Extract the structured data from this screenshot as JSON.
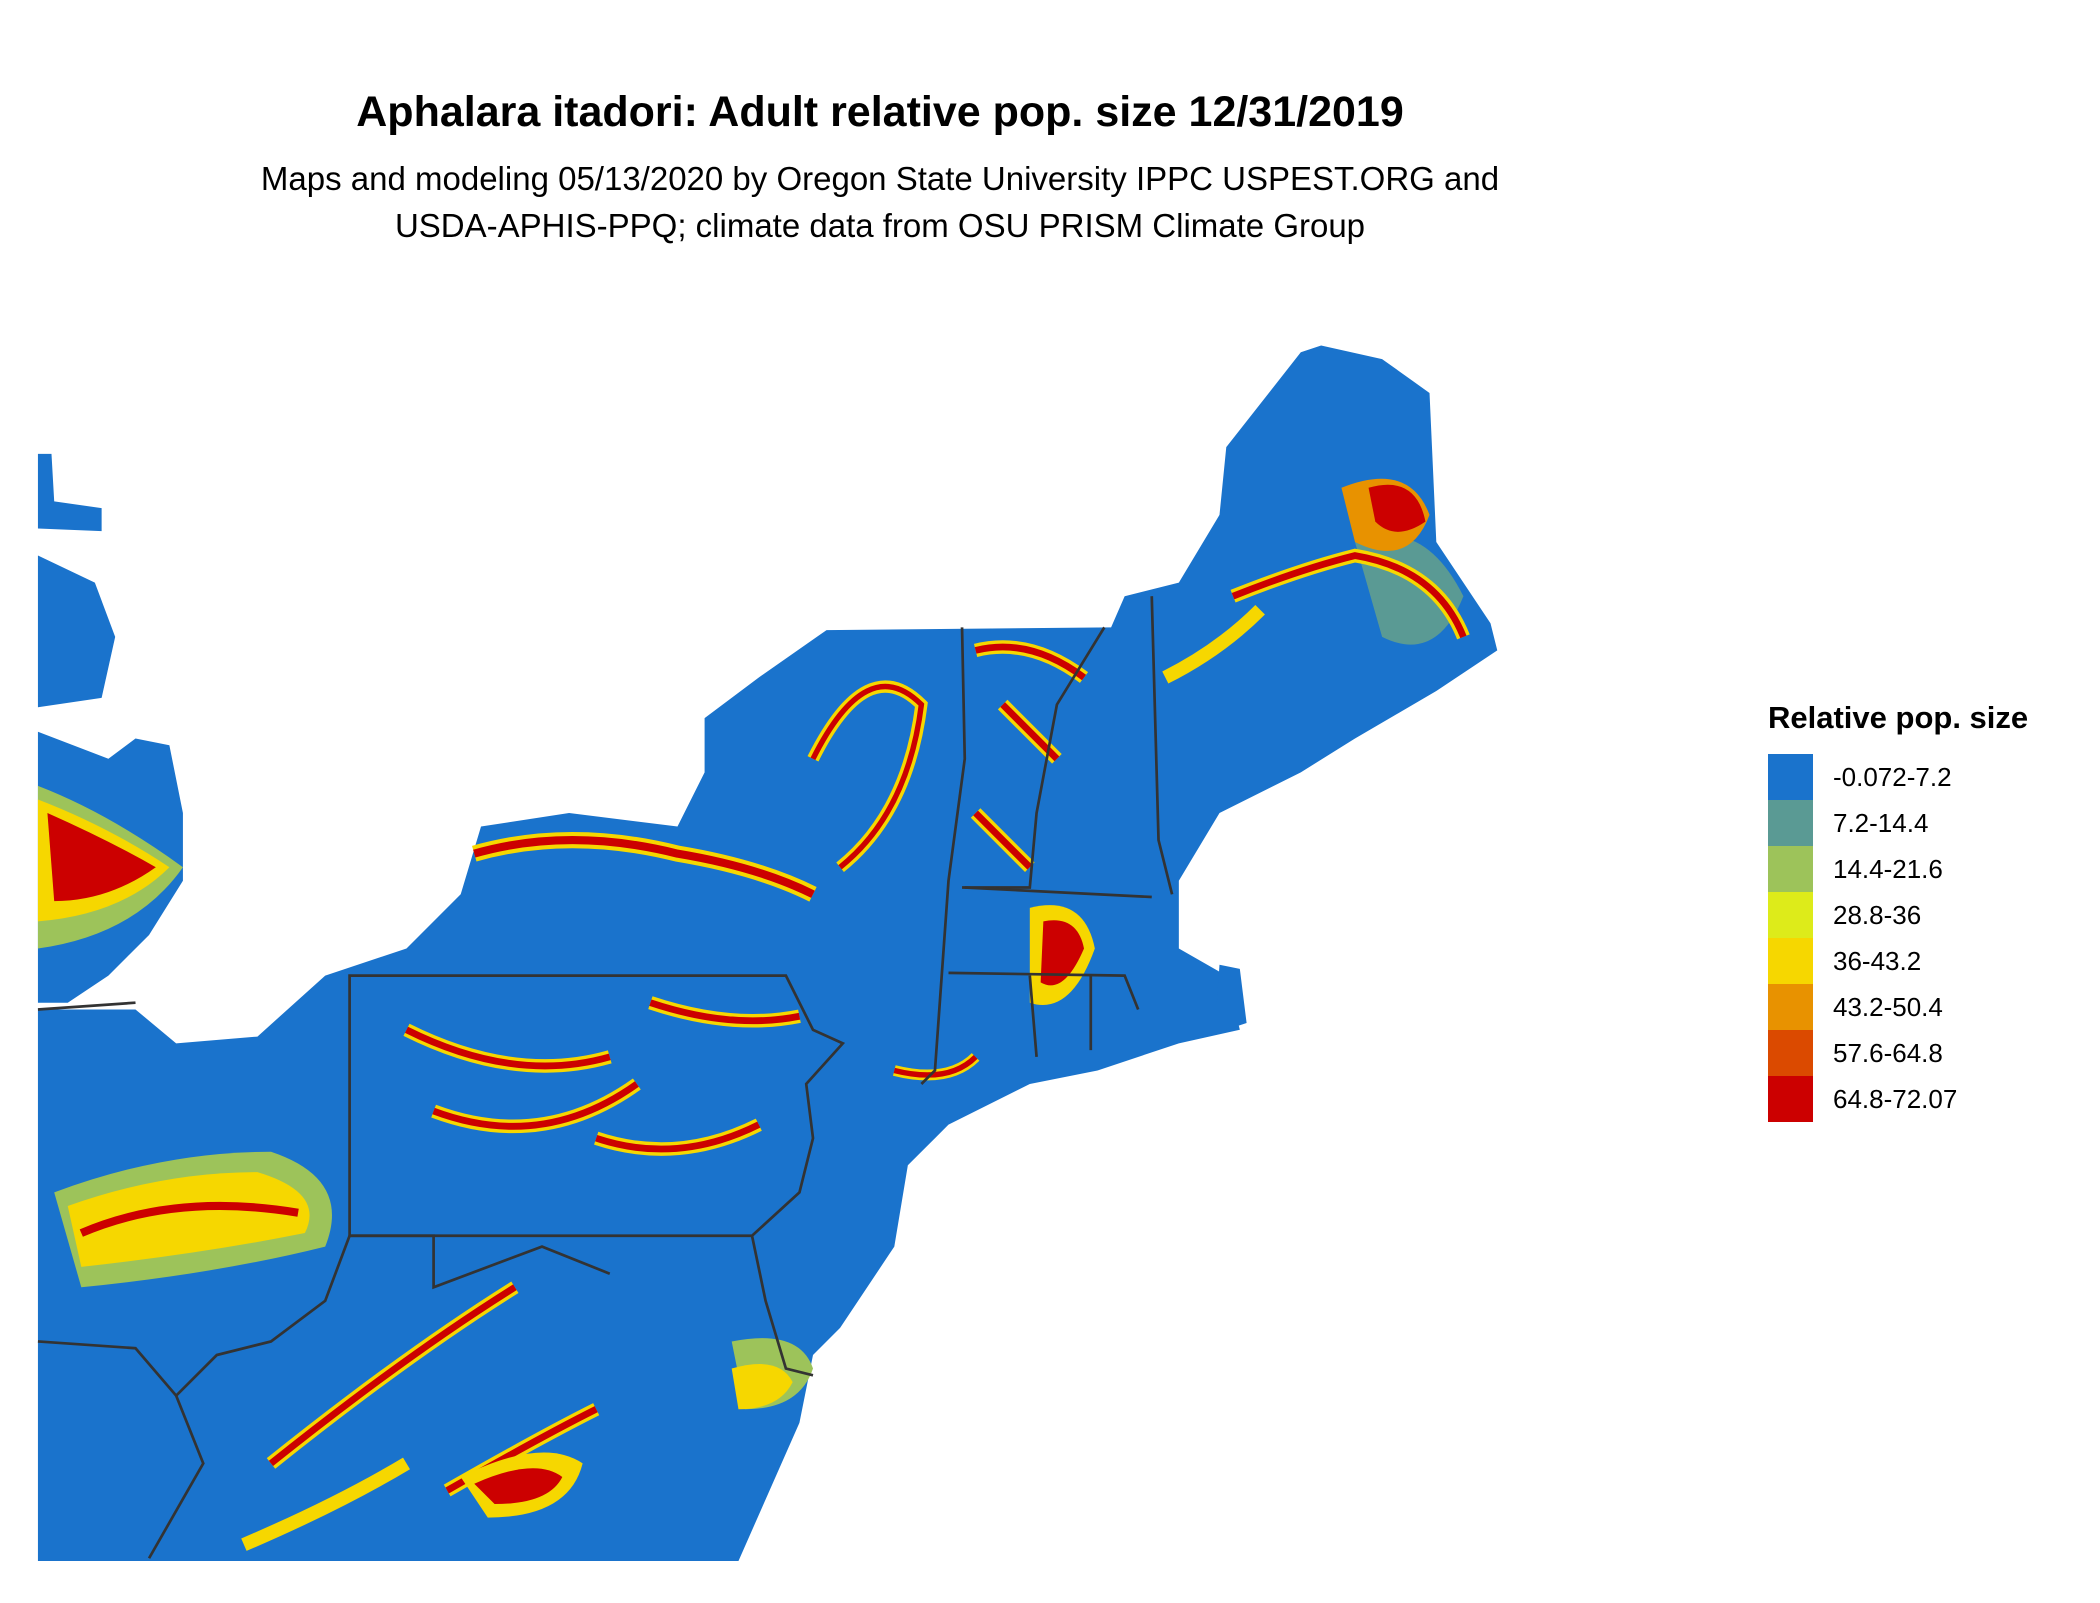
{
  "title": "Aphalara itadori: Adult relative pop. size 12/31/2019",
  "subtitle_lines": [
    "Maps and modeling 05/13/2020 by Oregon State University IPPC USPEST.ORG and",
    "USDA-APHIS-PPQ; climate data from OSU PRISM Climate Group"
  ],
  "chart_data": {
    "type": "map",
    "region": "Northeastern United States",
    "legend": {
      "title": "Relative pop. size",
      "placement": "right",
      "items": [
        {
          "label": "-0.072-7.2",
          "color": "#1A73CC"
        },
        {
          "label": "7.2-14.4",
          "color": "#5A9A94"
        },
        {
          "label": "14.4-21.6",
          "color": "#9DC35A"
        },
        {
          "label": "28.8-36",
          "color": "#DDEB1A"
        },
        {
          "label": "36-43.2",
          "color": "#F6D700"
        },
        {
          "label": "43.2-50.4",
          "color": "#E89200"
        },
        {
          "label": "57.6-64.8",
          "color": "#DB4A00"
        },
        {
          "label": "64.8-72.07",
          "color": "#CC0000"
        }
      ]
    },
    "border_color": "#333333"
  }
}
